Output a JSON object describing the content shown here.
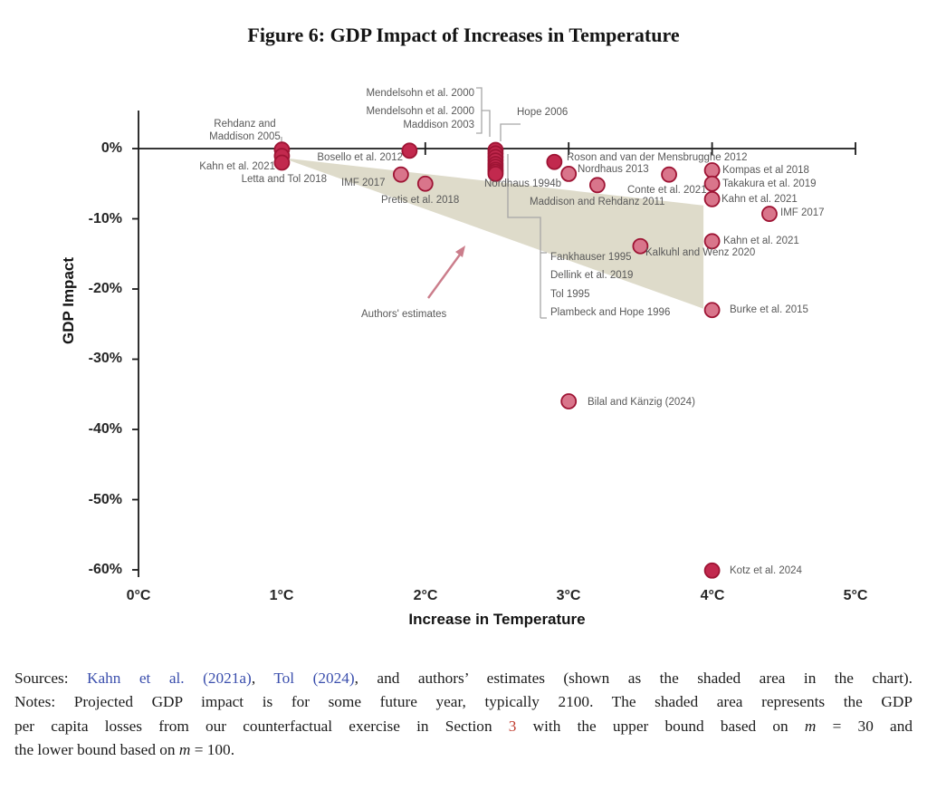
{
  "title": "Figure 6: GDP Impact of Increases in Temperature",
  "colors": {
    "point_fill_dark": "#c2294e",
    "point_fill_light": "#d9758b",
    "point_stroke": "#9e1434",
    "shaded_area": "#dedbca",
    "arrow": "#cb7d8b",
    "annotation_text": "#595959",
    "axis": "#1a1a1a",
    "link": "#3b4fad",
    "section_ref": "#c03b2d"
  },
  "chart_data": {
    "type": "scatter",
    "title": "Figure 6: GDP Impact of Increases in Temperature",
    "xlabel": "Increase in Temperature",
    "ylabel": "GDP Impact",
    "xlim": [
      0,
      5
    ],
    "ylim": [
      -60,
      0
    ],
    "x_ticks": [
      "0°C",
      "1°C",
      "2°C",
      "3°C",
      "4°C",
      "5°C"
    ],
    "y_ticks": [
      "0%",
      "-10%",
      "-20%",
      "-30%",
      "-40%",
      "-50%",
      "-60%"
    ],
    "grid": false,
    "legend": "none",
    "points": [
      {
        "study": "Rehdanz and Maddison 2005",
        "x": 1.0,
        "y": -0.15,
        "shade": "dark"
      },
      {
        "study": "Kahn et al. 2021",
        "x": 1.0,
        "y": -1.05,
        "shade": "dark"
      },
      {
        "study": "Letta and Tol 2018",
        "x": 1.0,
        "y": -2.0,
        "shade": "dark"
      },
      {
        "study": "Bosello et al. 2012",
        "x": 1.89,
        "y": -0.3,
        "shade": "dark"
      },
      {
        "study": "IMF 2017",
        "x": 1.83,
        "y": -3.7,
        "shade": "light"
      },
      {
        "study": "Pretis et al. 2018",
        "x": 2.0,
        "y": -5.0,
        "shade": "light"
      },
      {
        "study": "Mendelsohn et al. 2000",
        "x": 2.49,
        "y": -0.2,
        "shade": "dark"
      },
      {
        "study": "Mendelsohn et al. 2000",
        "x": 2.49,
        "y": -0.7,
        "shade": "dark"
      },
      {
        "study": "Maddison 2003",
        "x": 2.49,
        "y": -1.2,
        "shade": "dark"
      },
      {
        "study": "Hope 2006",
        "x": 2.49,
        "y": -1.7,
        "shade": "dark"
      },
      {
        "study": "Nordhaus 1994b",
        "x": 2.49,
        "y": -2.2,
        "shade": "dark"
      },
      {
        "study": "Fankhauser 1995",
        "x": 2.49,
        "y": -2.6,
        "shade": "dark"
      },
      {
        "study": "Dellink et al. 2019",
        "x": 2.49,
        "y": -3.0,
        "shade": "dark"
      },
      {
        "study": "Tol 1995",
        "x": 2.49,
        "y": -3.3,
        "shade": "dark"
      },
      {
        "study": "Plambeck and Hope 1996",
        "x": 2.49,
        "y": -3.6,
        "shade": "dark"
      },
      {
        "study": "Roson and van der Mensbrugghe 2012",
        "x": 2.9,
        "y": -1.9,
        "shade": "dark"
      },
      {
        "study": "Nordhaus 2013",
        "x": 3.0,
        "y": -3.6,
        "shade": "light"
      },
      {
        "study": "Maddison and Rehdanz 2011",
        "x": 3.2,
        "y": -5.2,
        "shade": "light"
      },
      {
        "study": "Conte et al. 2021",
        "x": 3.7,
        "y": -3.7,
        "shade": "light"
      },
      {
        "study": "Kompas et al 2018",
        "x": 4.0,
        "y": -3.1,
        "shade": "light"
      },
      {
        "study": "Takakura et al. 2019",
        "x": 4.0,
        "y": -5.0,
        "shade": "light"
      },
      {
        "study": "Kahn et al. 2021",
        "x": 4.0,
        "y": -7.2,
        "shade": "light"
      },
      {
        "study": "IMF 2017",
        "x": 4.4,
        "y": -9.3,
        "shade": "light"
      },
      {
        "study": "Kahn et al. 2021",
        "x": 4.0,
        "y": -13.2,
        "shade": "light"
      },
      {
        "study": "Kalkuhl and Wenz 2020",
        "x": 3.5,
        "y": -13.9,
        "shade": "light"
      },
      {
        "study": "Burke et al. 2015",
        "x": 4.0,
        "y": -23.0,
        "shade": "light"
      },
      {
        "study": "Bilal and Känzig (2024)",
        "x": 3.0,
        "y": -36.0,
        "shade": "light"
      },
      {
        "study": "Kotz et al. 2024",
        "x": 4.0,
        "y": -60.1,
        "shade": "dark"
      }
    ],
    "shaded_area": {
      "label": "Authors' estimates",
      "vertices": [
        [
          1.0,
          -1.3
        ],
        [
          3.94,
          -8.1
        ],
        [
          3.94,
          -22.8
        ]
      ]
    }
  },
  "footer": {
    "sources_prefix": "Sources: ",
    "link1": "Kahn et al. (2021a)",
    "sep1": ", ",
    "link2": "Tol (2024)",
    "sources_suffix": ", and authors’ estimates (shown as the shaded area in the chart).",
    "notes_line1": "Notes: Projected GDP impact is for some future year, typically 2100. The shaded area represents the GDP",
    "notes_line2_a": "per capita losses from our counterfactual exercise in Section ",
    "notes_section_num": "3",
    "notes_line2_b": " with the upper bound based on ",
    "notes_m1": "m",
    "notes_line2_c": " = 30 and",
    "notes_line3_a": "the lower bound based on ",
    "notes_m2": "m",
    "notes_line3_b": " = 100."
  }
}
